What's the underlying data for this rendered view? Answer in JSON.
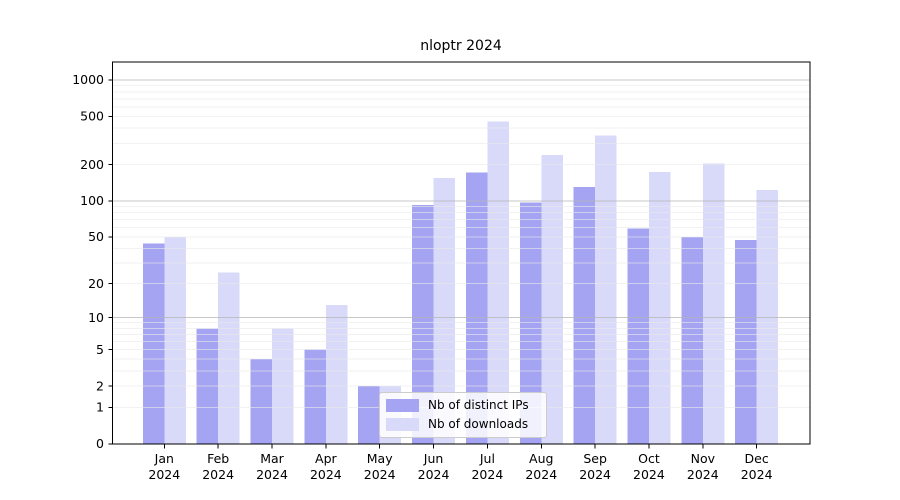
{
  "chart_data": {
    "type": "bar",
    "title": "nloptr 2024",
    "xlabel": "",
    "ylabel": "",
    "yscale": "log1p",
    "ylim": [
      0,
      1400
    ],
    "ytick_labels": [
      0,
      1,
      2,
      5,
      10,
      20,
      50,
      100,
      200,
      500,
      1000
    ],
    "grid": "horizontal log gridlines, minor light / major darker, drawn over bars",
    "legend_position": "lower center inside plot",
    "categories": [
      "Jan",
      "Feb",
      "Mar",
      "Apr",
      "May",
      "Jun",
      "Jul",
      "Aug",
      "Sep",
      "Oct",
      "Nov",
      "Dec"
    ],
    "x_tick_year": "2024",
    "series": [
      {
        "name": "Nb of distinct IPs",
        "color": "#a4a4f2",
        "values": [
          44,
          8,
          4,
          5,
          2,
          92,
          172,
          97,
          130,
          59,
          50,
          47
        ]
      },
      {
        "name": "Nb of downloads",
        "color": "#d9d9f9",
        "values": [
          50,
          25,
          8,
          13,
          2,
          155,
          455,
          240,
          350,
          174,
          205,
          123
        ]
      }
    ],
    "colors": {
      "axis": "#000000",
      "minor_grid": "#eaeaea",
      "major_grid": "#b5b5b5",
      "text": "#000000"
    }
  }
}
